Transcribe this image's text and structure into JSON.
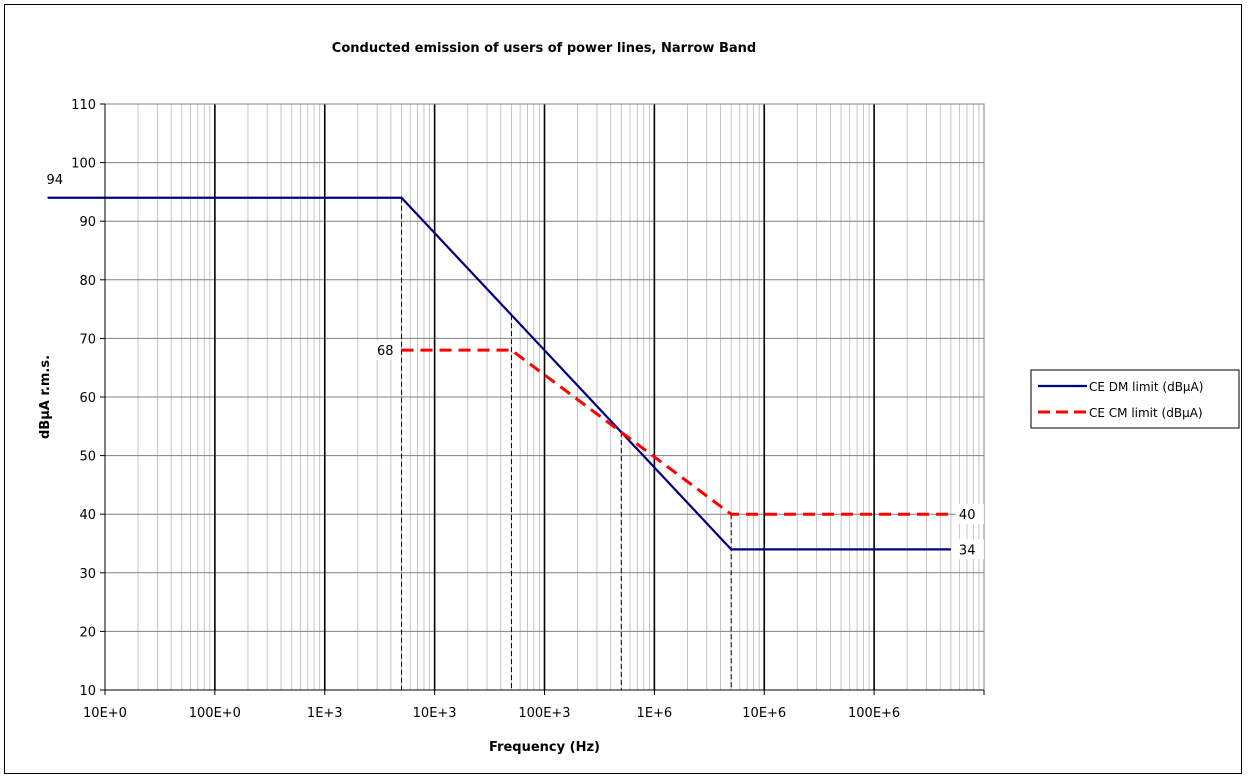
{
  "chart_data": {
    "type": "line",
    "title": "Conducted emission of users of power lines, Narrow Band",
    "xlabel": "Frequency (Hz)",
    "ylabel": "dBμA r.m.s.",
    "x_scale": "log",
    "xlim": [
      10,
      1000000000
    ],
    "ylim": [
      10,
      110
    ],
    "x_tick_values": [
      10,
      100,
      1000,
      10000,
      100000,
      1000000,
      10000000,
      100000000
    ],
    "x_tick_labels": [
      "10E+0",
      "100E+0",
      "1E+3",
      "10E+3",
      "100E+3",
      "1E+6",
      "10E+6",
      "100E+6"
    ],
    "y_ticks": [
      10,
      20,
      30,
      40,
      50,
      60,
      70,
      80,
      90,
      100,
      110
    ],
    "grid": true,
    "legend_position": "right",
    "series": [
      {
        "name": "CE DM limit (dBμA)",
        "color": "#000080",
        "style": "solid",
        "x": [
          3,
          5000,
          5000000,
          500000000
        ],
        "y": [
          94,
          94,
          34,
          34
        ]
      },
      {
        "name": "CE CM limit (dBμA)",
        "color": "#ff0000",
        "style": "dashed",
        "x": [
          5000,
          50000,
          5000000,
          500000000
        ],
        "y": [
          68,
          68,
          40,
          40
        ]
      }
    ],
    "annotations": [
      {
        "text": "94",
        "x": 3,
        "y": 94
      },
      {
        "text": "68",
        "x": 5000,
        "y": 68
      },
      {
        "text": "40",
        "x": 500000000,
        "y": 40
      },
      {
        "text": "34",
        "x": 500000000,
        "y": 34
      }
    ],
    "dropdown_lines_x": [
      5000,
      50000,
      500000,
      5000000
    ]
  }
}
